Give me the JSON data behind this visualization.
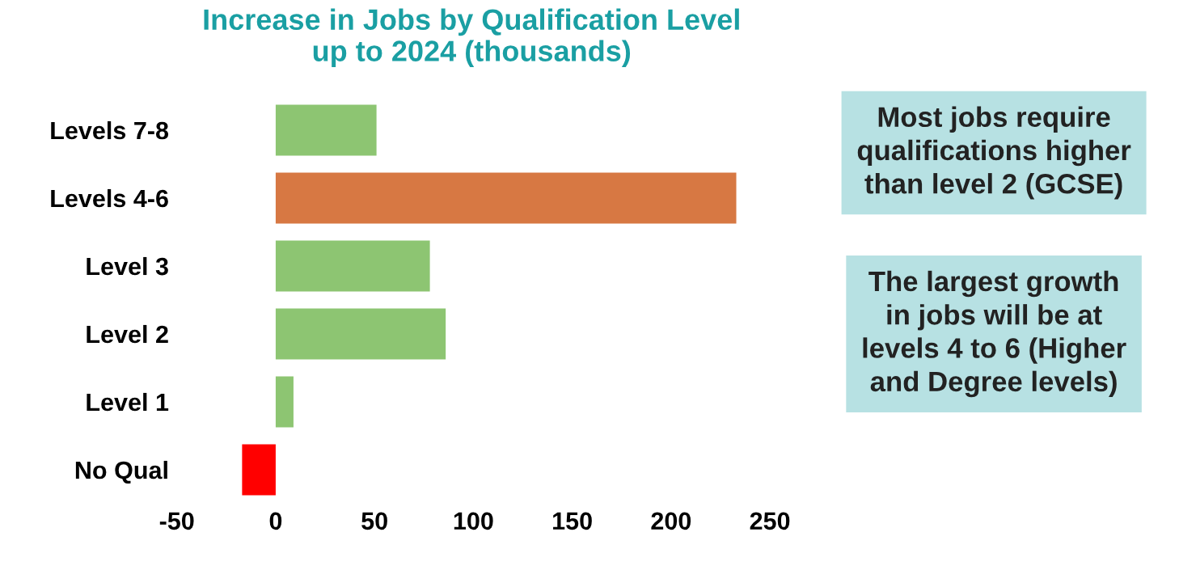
{
  "chart_data": {
    "type": "bar",
    "orientation": "horizontal",
    "title": "Increase in Jobs by Qualification Level\nup to 2024 (thousands)",
    "categories": [
      "Levels 7-8",
      "Levels 4-6",
      "Level 3",
      "Level 2",
      "Level 1",
      "No Qual"
    ],
    "values": [
      51,
      233,
      78,
      86,
      9,
      -17
    ],
    "colors": [
      "#8dc572",
      "#d77843",
      "#8dc572",
      "#8dc572",
      "#8dc572",
      "#ff0000"
    ],
    "xlim": [
      -50,
      250
    ],
    "xticks": [
      -50,
      0,
      50,
      100,
      150,
      200,
      250
    ],
    "grid": false,
    "legend": false,
    "annotations": [
      "Most jobs require\nqualifications higher\nthan level 2 (GCSE)",
      "The largest growth\nin jobs will be at\nlevels 4 to 6 (Higher\nand Degree levels)"
    ]
  }
}
